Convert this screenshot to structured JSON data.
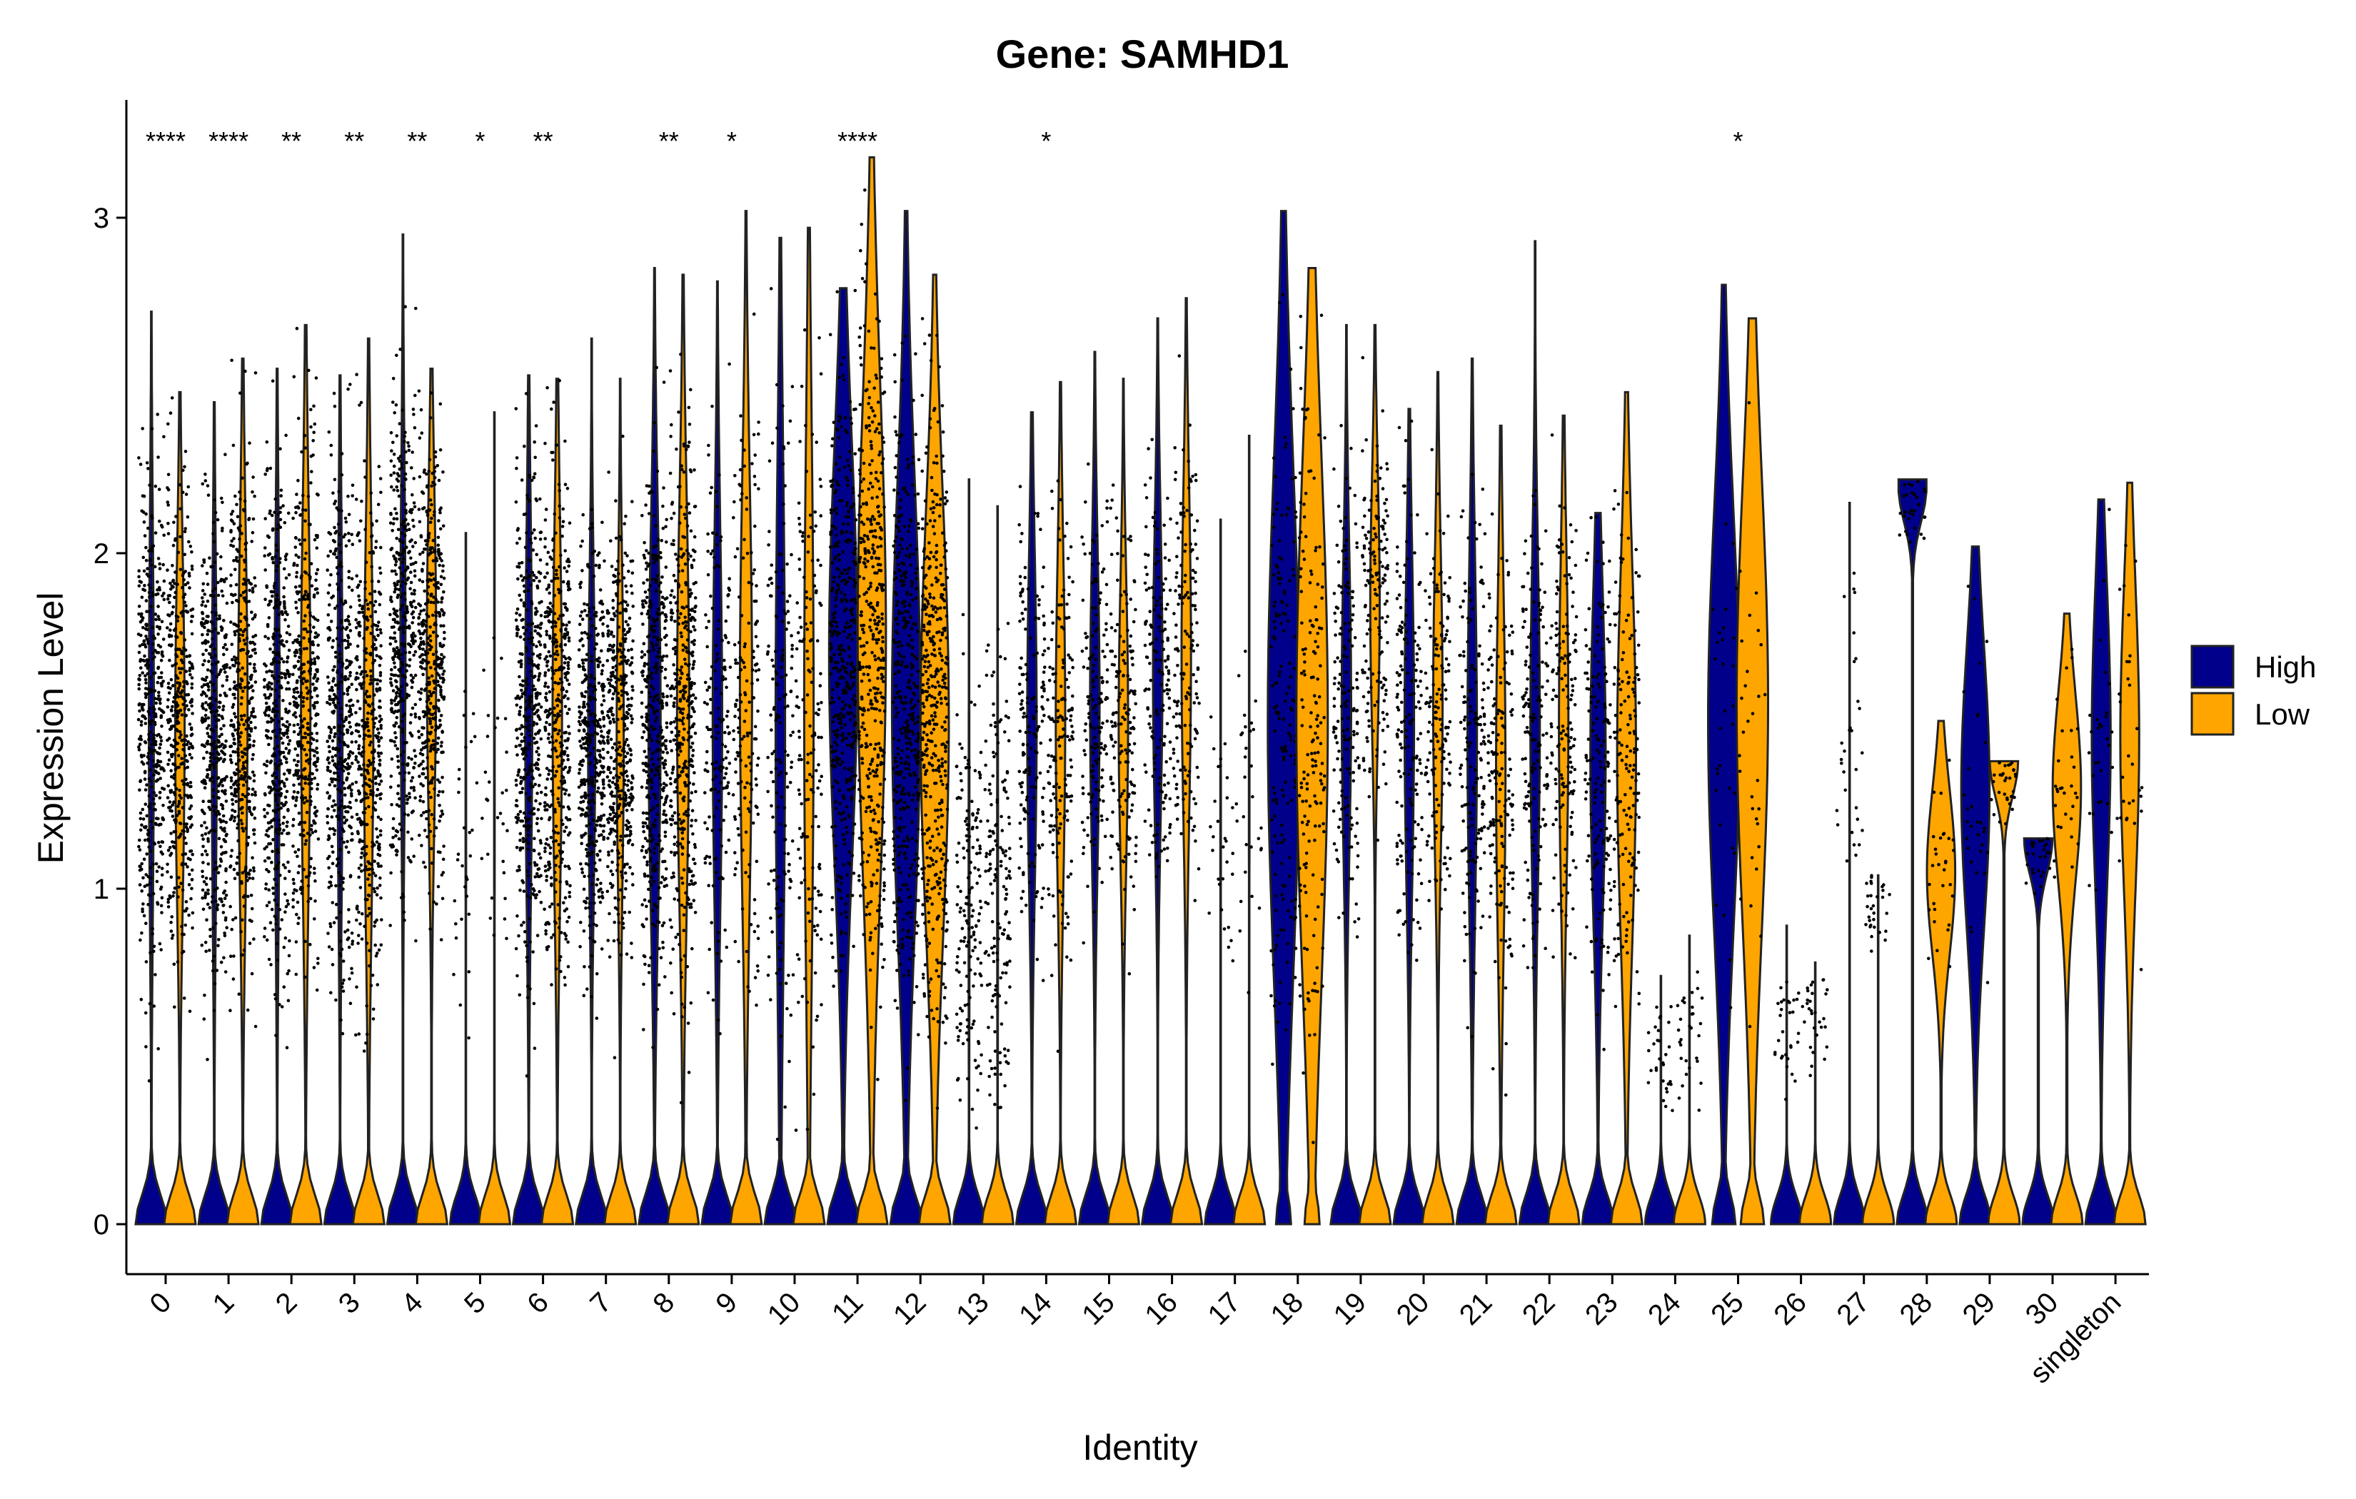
{
  "chart_data": {
    "type": "violin",
    "title": "Gene: SAMHD1",
    "xlabel": "Identity",
    "ylabel": "Expression Level",
    "ylim": [
      -0.15,
      3.3
    ],
    "yticks": [
      0,
      1,
      2,
      3
    ],
    "grid": false,
    "legend_position": "right",
    "series": [
      {
        "name": "High",
        "color": "#00008B"
      },
      {
        "name": "Low",
        "color": "#FFA500"
      }
    ],
    "categories": [
      "0",
      "1",
      "2",
      "3",
      "4",
      "5",
      "6",
      "7",
      "8",
      "9",
      "10",
      "11",
      "12",
      "13",
      "14",
      "15",
      "16",
      "17",
      "18",
      "19",
      "20",
      "21",
      "22",
      "23",
      "24",
      "25",
      "26",
      "27",
      "28",
      "29",
      "30",
      "singleton"
    ],
    "significance": [
      {
        "category": "0",
        "label": "****"
      },
      {
        "category": "1",
        "label": "****"
      },
      {
        "category": "2",
        "label": "**"
      },
      {
        "category": "3",
        "label": "**"
      },
      {
        "category": "4",
        "label": "**"
      },
      {
        "category": "5",
        "label": "*"
      },
      {
        "category": "6",
        "label": "**"
      },
      {
        "category": "8",
        "label": "**"
      },
      {
        "category": "9",
        "label": "*"
      },
      {
        "category": "11",
        "label": "****"
      },
      {
        "category": "14",
        "label": "*"
      },
      {
        "category": "25",
        "label": "*"
      }
    ],
    "violins": [
      {
        "category": "0",
        "group": "High",
        "max": 2.72,
        "zero_frac": 0.85,
        "upper": [
          0.7,
          2.3
        ],
        "density": "dense"
      },
      {
        "category": "0",
        "group": "Low",
        "max": 2.48,
        "zero_frac": 0.75,
        "upper": [
          0.75,
          2.2
        ],
        "density": "dense"
      },
      {
        "category": "1",
        "group": "High",
        "max": 2.45,
        "zero_frac": 0.85,
        "upper": [
          0.7,
          2.2
        ],
        "density": "dense"
      },
      {
        "category": "1",
        "group": "Low",
        "max": 2.58,
        "zero_frac": 0.75,
        "upper": [
          0.75,
          2.3
        ],
        "density": "dense"
      },
      {
        "category": "2",
        "group": "High",
        "max": 2.55,
        "zero_frac": 0.85,
        "upper": [
          0.7,
          2.3
        ],
        "density": "dense"
      },
      {
        "category": "2",
        "group": "Low",
        "max": 2.68,
        "zero_frac": 0.75,
        "upper": [
          0.75,
          2.4
        ],
        "density": "dense"
      },
      {
        "category": "3",
        "group": "High",
        "max": 2.53,
        "zero_frac": 0.85,
        "upper": [
          0.7,
          2.3
        ],
        "density": "dense"
      },
      {
        "category": "3",
        "group": "Low",
        "max": 2.64,
        "zero_frac": 0.75,
        "upper": [
          0.65,
          2.3
        ],
        "density": "dense"
      },
      {
        "category": "4",
        "group": "High",
        "max": 2.95,
        "zero_frac": 0.85,
        "upper": [
          1.0,
          2.5
        ],
        "density": "dense"
      },
      {
        "category": "4",
        "group": "Low",
        "max": 2.55,
        "zero_frac": 0.75,
        "upper": [
          1.0,
          2.4
        ],
        "density": "dense"
      },
      {
        "category": "5",
        "group": "High",
        "max": 2.06,
        "zero_frac": 0.98,
        "upper": [
          0.6,
          1.8
        ],
        "density": "sparse"
      },
      {
        "category": "5",
        "group": "Low",
        "max": 2.42,
        "zero_frac": 0.98,
        "upper": [
          0.6,
          1.9
        ],
        "density": "sparse"
      },
      {
        "category": "6",
        "group": "High",
        "max": 2.53,
        "zero_frac": 0.8,
        "upper": [
          0.75,
          2.3
        ],
        "density": "dense"
      },
      {
        "category": "6",
        "group": "Low",
        "max": 2.52,
        "zero_frac": 0.75,
        "upper": [
          0.75,
          2.3
        ],
        "density": "dense"
      },
      {
        "category": "7",
        "group": "High",
        "max": 2.64,
        "zero_frac": 0.8,
        "upper": [
          0.8,
          2.1
        ],
        "density": "dense"
      },
      {
        "category": "7",
        "group": "Low",
        "max": 2.52,
        "zero_frac": 0.8,
        "upper": [
          0.8,
          2.1
        ],
        "density": "dense"
      },
      {
        "category": "8",
        "group": "High",
        "max": 2.85,
        "zero_frac": 0.7,
        "upper": [
          0.7,
          2.3
        ],
        "density": "dense"
      },
      {
        "category": "8",
        "group": "Low",
        "max": 2.83,
        "zero_frac": 0.7,
        "upper": [
          0.7,
          2.4
        ],
        "density": "dense"
      },
      {
        "category": "9",
        "group": "High",
        "max": 2.81,
        "zero_frac": 0.75,
        "upper": [
          0.7,
          2.3
        ],
        "density": "medium"
      },
      {
        "category": "9",
        "group": "Low",
        "max": 3.02,
        "zero_frac": 0.7,
        "upper": [
          0.7,
          2.5
        ],
        "density": "medium"
      },
      {
        "category": "10",
        "group": "High",
        "max": 2.94,
        "zero_frac": 0.75,
        "upper": [
          0.4,
          2.6
        ],
        "density": "medium"
      },
      {
        "category": "10",
        "group": "Low",
        "max": 2.97,
        "zero_frac": 0.75,
        "upper": [
          0.4,
          2.7
        ],
        "density": "medium"
      },
      {
        "category": "11",
        "group": "High",
        "max": 2.79,
        "zero_frac": 0.5,
        "upper": [
          0.8,
          2.6
        ],
        "density": "dense"
      },
      {
        "category": "11",
        "group": "Low",
        "max": 3.18,
        "zero_frac": 0.5,
        "upper": [
          0.7,
          2.8
        ],
        "density": "dense"
      },
      {
        "category": "12",
        "group": "High",
        "max": 3.02,
        "zero_frac": 0.5,
        "upper": [
          0.6,
          2.5
        ],
        "density": "dense"
      },
      {
        "category": "12",
        "group": "Low",
        "max": 2.83,
        "zero_frac": 0.5,
        "upper": [
          0.6,
          2.4
        ],
        "density": "dense"
      },
      {
        "category": "13",
        "group": "High",
        "max": 2.22,
        "zero_frac": 0.97,
        "upper": [
          0.3,
          1.7
        ],
        "density": "medium"
      },
      {
        "category": "13",
        "group": "Low",
        "max": 2.14,
        "zero_frac": 0.97,
        "upper": [
          0.3,
          1.8
        ],
        "density": "medium"
      },
      {
        "category": "14",
        "group": "High",
        "max": 2.42,
        "zero_frac": 0.75,
        "upper": [
          0.8,
          2.2
        ],
        "density": "medium"
      },
      {
        "category": "14",
        "group": "Low",
        "max": 2.51,
        "zero_frac": 0.75,
        "upper": [
          0.8,
          2.2
        ],
        "density": "medium"
      },
      {
        "category": "15",
        "group": "High",
        "max": 2.6,
        "zero_frac": 0.75,
        "upper": [
          0.9,
          2.2
        ],
        "density": "medium"
      },
      {
        "category": "15",
        "group": "Low",
        "max": 2.52,
        "zero_frac": 0.75,
        "upper": [
          0.9,
          2.1
        ],
        "density": "medium"
      },
      {
        "category": "16",
        "group": "High",
        "max": 2.7,
        "zero_frac": 0.75,
        "upper": [
          1.0,
          2.3
        ],
        "density": "medium"
      },
      {
        "category": "16",
        "group": "Low",
        "max": 2.76,
        "zero_frac": 0.75,
        "upper": [
          1.0,
          2.4
        ],
        "density": "medium"
      },
      {
        "category": "17",
        "group": "High",
        "max": 2.1,
        "zero_frac": 0.98,
        "upper": [
          0.8,
          1.6
        ],
        "density": "sparse"
      },
      {
        "category": "17",
        "group": "Low",
        "max": 2.35,
        "zero_frac": 0.98,
        "upper": [
          0.8,
          1.7
        ],
        "density": "sparse"
      },
      {
        "category": "18",
        "group": "High",
        "max": 3.02,
        "zero_frac": 0.3,
        "upper": [
          0.4,
          2.6
        ],
        "density": "medium"
      },
      {
        "category": "18",
        "group": "Low",
        "max": 2.85,
        "zero_frac": 0.3,
        "upper": [
          0.4,
          2.6
        ],
        "density": "medium"
      },
      {
        "category": "19",
        "group": "High",
        "max": 2.68,
        "zero_frac": 0.75,
        "upper": [
          0.9,
          2.2
        ],
        "density": "medium"
      },
      {
        "category": "19",
        "group": "Low",
        "max": 2.68,
        "zero_frac": 0.75,
        "upper": [
          1.3,
          2.4
        ],
        "density": "medium"
      },
      {
        "category": "20",
        "group": "High",
        "max": 2.43,
        "zero_frac": 0.75,
        "upper": [
          0.8,
          2.2
        ],
        "density": "medium"
      },
      {
        "category": "20",
        "group": "Low",
        "max": 2.54,
        "zero_frac": 0.75,
        "upper": [
          0.9,
          2.2
        ],
        "density": "medium"
      },
      {
        "category": "21",
        "group": "High",
        "max": 2.58,
        "zero_frac": 0.75,
        "upper": [
          0.7,
          2.2
        ],
        "density": "medium"
      },
      {
        "category": "21",
        "group": "Low",
        "max": 2.38,
        "zero_frac": 0.75,
        "upper": [
          0.6,
          2.1
        ],
        "density": "medium"
      },
      {
        "category": "22",
        "group": "High",
        "max": 2.93,
        "zero_frac": 0.75,
        "upper": [
          0.8,
          2.2
        ],
        "density": "medium"
      },
      {
        "category": "22",
        "group": "Low",
        "max": 2.41,
        "zero_frac": 0.75,
        "upper": [
          0.8,
          2.2
        ],
        "density": "medium"
      },
      {
        "category": "23",
        "group": "High",
        "max": 2.12,
        "zero_frac": 0.65,
        "upper": [
          0.7,
          2.1
        ],
        "density": "medium"
      },
      {
        "category": "23",
        "group": "Low",
        "max": 2.48,
        "zero_frac": 0.6,
        "upper": [
          0.6,
          2.2
        ],
        "density": "medium"
      },
      {
        "category": "24",
        "group": "High",
        "max": 0.74,
        "zero_frac": 0.99,
        "upper": [
          0.3,
          0.7
        ],
        "density": "sparse"
      },
      {
        "category": "24",
        "group": "Low",
        "max": 0.86,
        "zero_frac": 0.99,
        "upper": [
          0.3,
          0.8
        ],
        "density": "sparse"
      },
      {
        "category": "25",
        "group": "High",
        "max": 2.8,
        "zero_frac": 0.4,
        "upper": [
          0.6,
          2.4
        ],
        "density": "sparse"
      },
      {
        "category": "25",
        "group": "Low",
        "max": 2.7,
        "zero_frac": 0.4,
        "upper": [
          0.6,
          2.5
        ],
        "density": "sparse"
      },
      {
        "category": "26",
        "group": "High",
        "max": 0.89,
        "zero_frac": 0.99,
        "upper": [
          0.4,
          0.8
        ],
        "density": "sparse"
      },
      {
        "category": "26",
        "group": "Low",
        "max": 0.78,
        "zero_frac": 0.99,
        "upper": [
          0.4,
          0.8
        ],
        "density": "sparse"
      },
      {
        "category": "27",
        "group": "High",
        "max": 2.15,
        "zero_frac": 0.99,
        "upper": [
          0.9,
          2.0
        ],
        "density": "sparse"
      },
      {
        "category": "27",
        "group": "Low",
        "max": 1.04,
        "zero_frac": 0.99,
        "upper": [
          1.0,
          1.0
        ],
        "density": "sparse"
      },
      {
        "category": "28",
        "group": "High",
        "max": 2.22,
        "zero_frac": 0.5,
        "upper": [
          2.2,
          2.2
        ],
        "density": "sparse"
      },
      {
        "category": "28",
        "group": "Low",
        "max": 1.5,
        "zero_frac": 0.5,
        "upper": [
          0.7,
          1.4
        ],
        "density": "sparse"
      },
      {
        "category": "29",
        "group": "High",
        "max": 2.02,
        "zero_frac": 0.5,
        "upper": [
          0.7,
          1.9
        ],
        "density": "sparse"
      },
      {
        "category": "29",
        "group": "Low",
        "max": 1.38,
        "zero_frac": 0.5,
        "upper": [
          1.38,
          1.38
        ],
        "density": "sparse"
      },
      {
        "category": "30",
        "group": "High",
        "max": 1.15,
        "zero_frac": 0.5,
        "upper": [
          1.15,
          1.15
        ],
        "density": "sparse"
      },
      {
        "category": "30",
        "group": "Low",
        "max": 1.82,
        "zero_frac": 0.5,
        "upper": [
          0.9,
          1.7
        ],
        "density": "sparse"
      },
      {
        "category": "singleton",
        "group": "High",
        "max": 2.16,
        "zero_frac": 0.6,
        "upper": [
          0.8,
          2.1
        ],
        "density": "sparse"
      },
      {
        "category": "singleton",
        "group": "Low",
        "max": 2.21,
        "zero_frac": 0.6,
        "upper": [
          0.8,
          2.1
        ],
        "density": "sparse"
      }
    ]
  }
}
